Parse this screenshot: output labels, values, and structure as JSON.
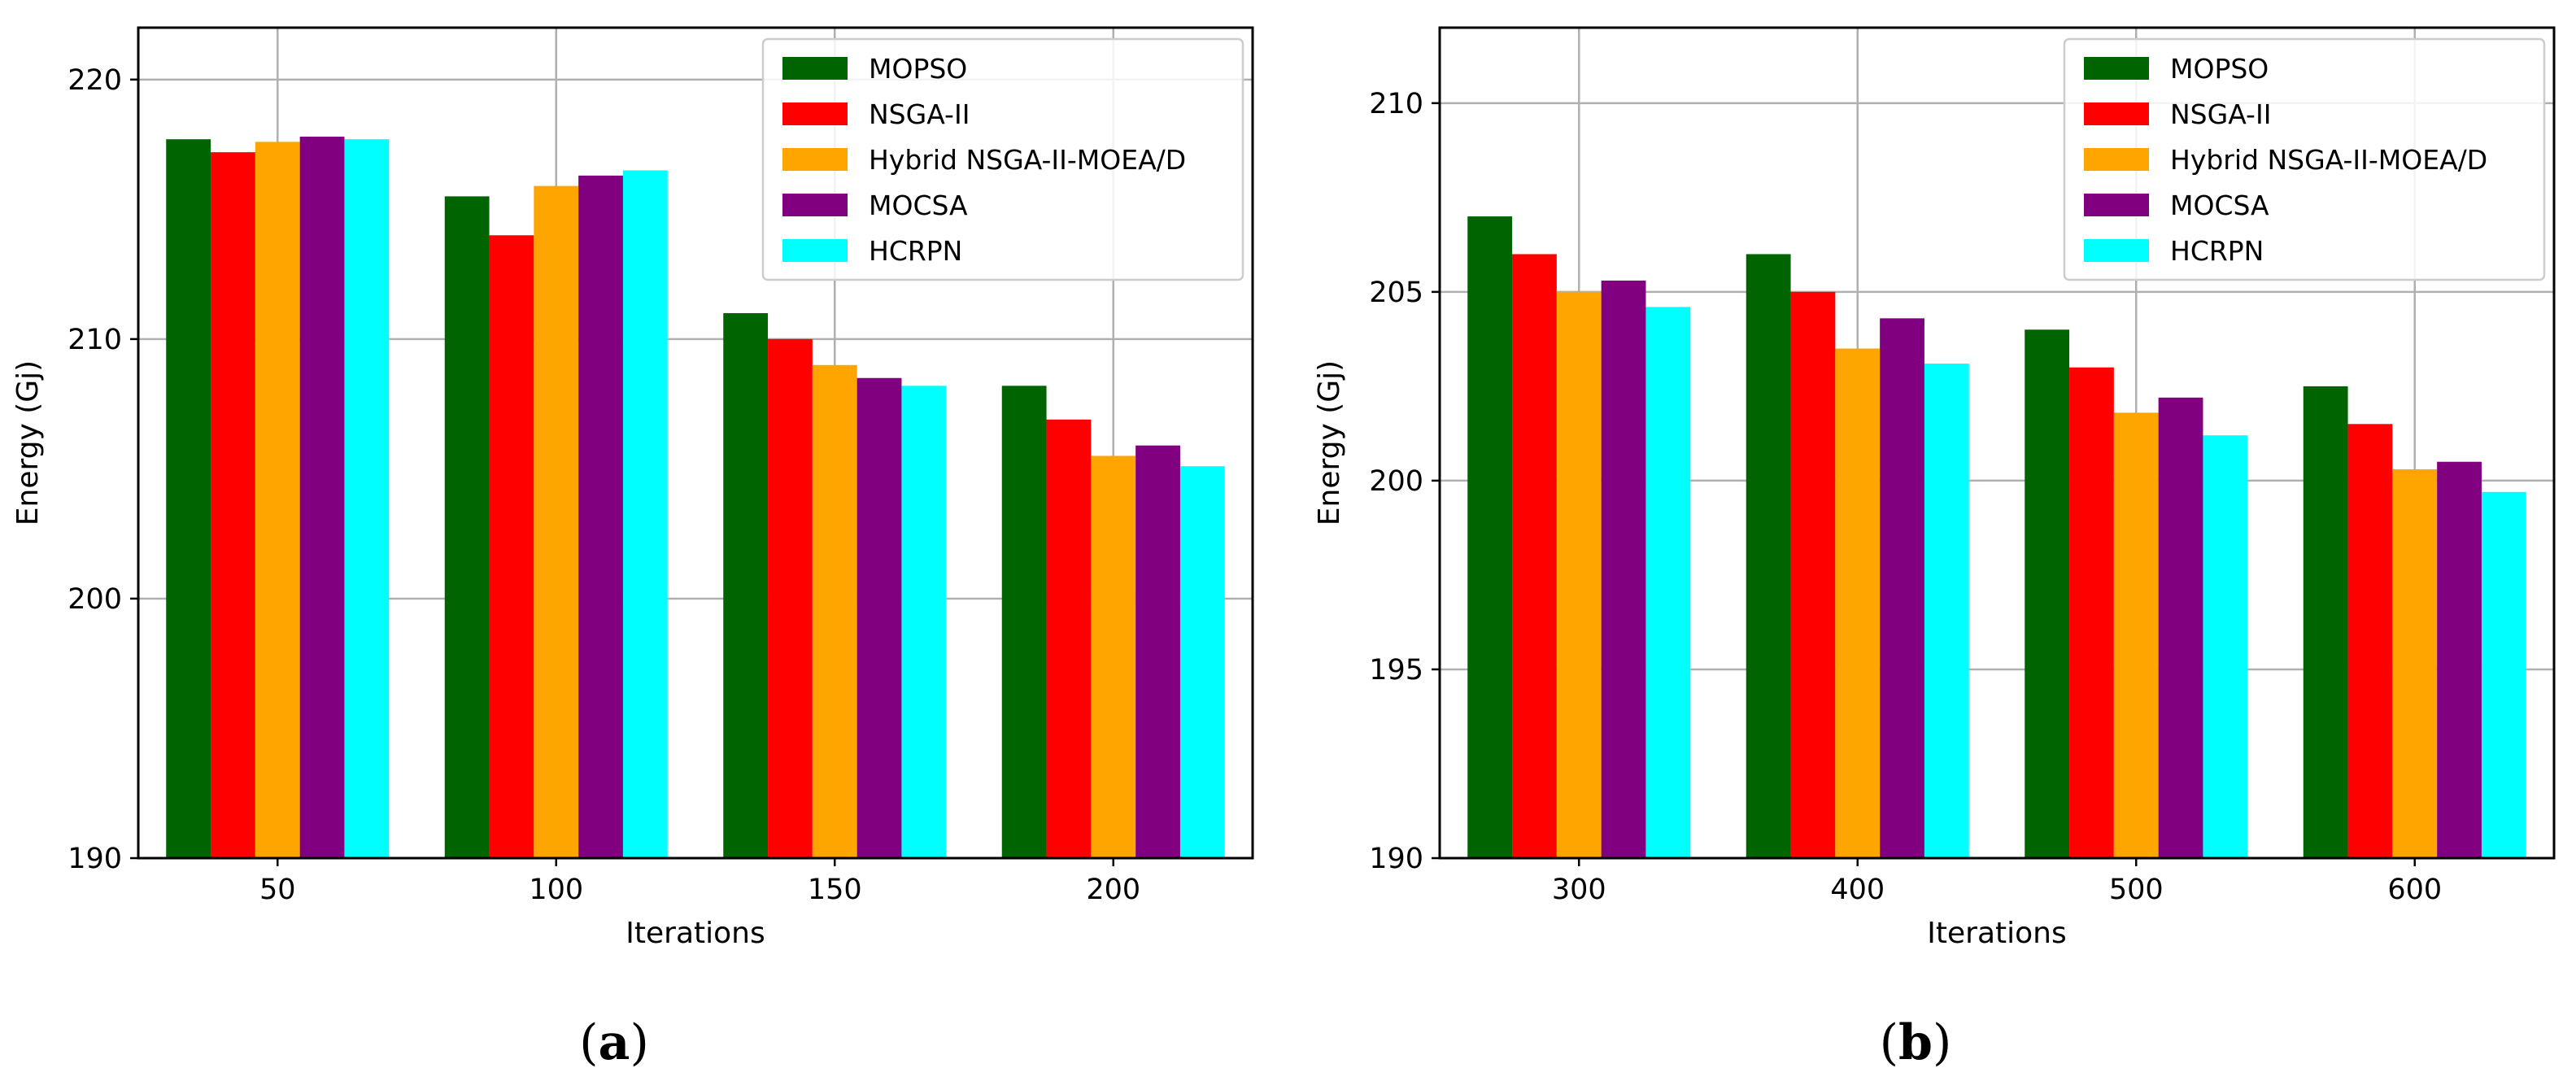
{
  "chart_data": [
    {
      "type": "bar",
      "panel_label": "a",
      "xlabel": "Iterations",
      "ylabel": "Energy (Gj)",
      "categories": [
        "50",
        "100",
        "150",
        "200"
      ],
      "ylim": [
        190,
        222
      ],
      "yticks": [
        190,
        200,
        210,
        220
      ],
      "grid": true,
      "legend_position": "top-right",
      "series": [
        {
          "name": "MOPSO",
          "color": "#006400",
          "values": [
            217.7,
            215.5,
            211.0,
            208.2
          ]
        },
        {
          "name": "NSGA-II",
          "color": "#ff0000",
          "values": [
            217.2,
            214.0,
            210.0,
            206.9
          ]
        },
        {
          "name": "Hybrid NSGA-II-MOEA/D",
          "color": "#ffa500",
          "values": [
            217.6,
            215.9,
            209.0,
            205.5
          ]
        },
        {
          "name": "MOCSA",
          "color": "#800080",
          "values": [
            217.8,
            216.3,
            208.5,
            205.9
          ]
        },
        {
          "name": "HCRPN",
          "color": "#00ffff",
          "values": [
            217.7,
            216.5,
            208.2,
            205.1
          ]
        }
      ]
    },
    {
      "type": "bar",
      "panel_label": "b",
      "xlabel": "Iterations",
      "ylabel": "Energy (Gj)",
      "categories": [
        "300",
        "400",
        "500",
        "600"
      ],
      "ylim": [
        190,
        212
      ],
      "yticks": [
        190,
        195,
        200,
        205,
        210
      ],
      "grid": true,
      "legend_position": "top-right",
      "series": [
        {
          "name": "MOPSO",
          "color": "#006400",
          "values": [
            207.0,
            206.0,
            204.0,
            202.5
          ]
        },
        {
          "name": "NSGA-II",
          "color": "#ff0000",
          "values": [
            206.0,
            205.0,
            203.0,
            201.5
          ]
        },
        {
          "name": "Hybrid NSGA-II-MOEA/D",
          "color": "#ffa500",
          "values": [
            205.0,
            203.5,
            201.8,
            200.3
          ]
        },
        {
          "name": "MOCSA",
          "color": "#800080",
          "values": [
            205.3,
            204.3,
            202.2,
            200.5
          ]
        },
        {
          "name": "HCRPN",
          "color": "#00ffff",
          "values": [
            204.6,
            203.1,
            201.2,
            199.7
          ]
        }
      ]
    }
  ]
}
